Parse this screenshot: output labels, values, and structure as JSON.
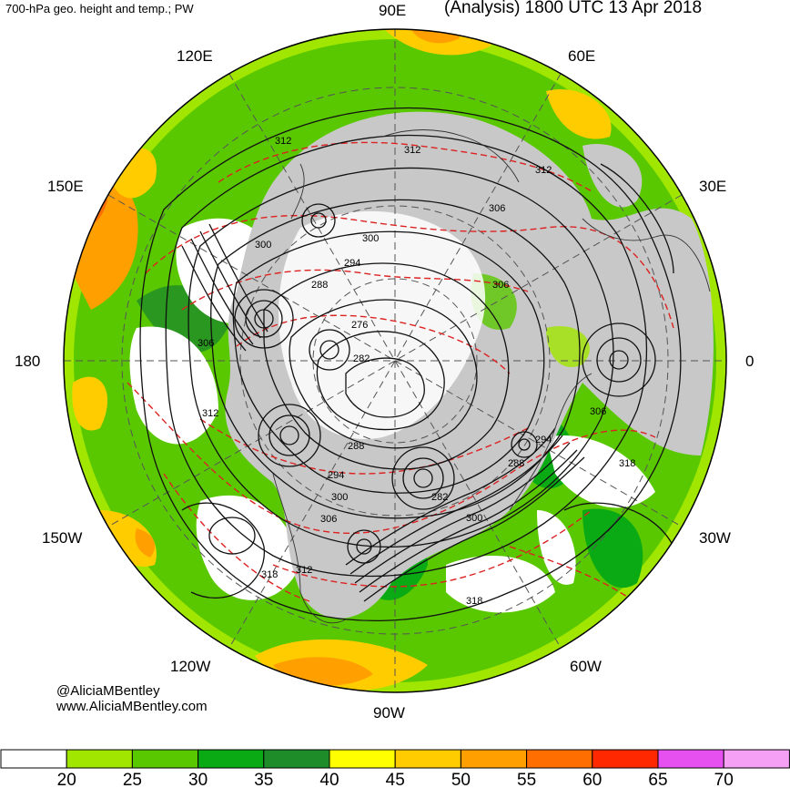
{
  "header": {
    "left_title": "700-hPa geo. height and temp.; PW",
    "right_title": "(Analysis) 1800 UTC 13 Apr 2018"
  },
  "longitude_labels": {
    "n90E": "90E",
    "n60E": "60E",
    "n120E": "120E",
    "n150E": "150E",
    "n30E": "30E",
    "w180": "180",
    "e0": "0",
    "s150W": "150W",
    "s30W": "30W",
    "s120W": "120W",
    "s60W": "60W",
    "s90W": "90W"
  },
  "credit": {
    "handle": "@AliciaMBentley",
    "site": "www.AliciaMBentley.com"
  },
  "contour_labels": [
    "312",
    "312",
    "312",
    "306",
    "300",
    "300",
    "294",
    "288",
    "276",
    "282",
    "306",
    "306",
    "312",
    "288",
    "294",
    "300",
    "306",
    "312",
    "318",
    "282",
    "288",
    "294",
    "300",
    "306",
    "318",
    "318"
  ],
  "colorbar": {
    "colors": [
      "#ffffff",
      "#a0e600",
      "#5ac800",
      "#0aaa14",
      "#1e8c28",
      "#ffff00",
      "#ffcc00",
      "#ffa000",
      "#ff6e00",
      "#ff2800",
      "#e650f0",
      "#f5a0f5"
    ],
    "labels": [
      "20",
      "25",
      "30",
      "35",
      "40",
      "45",
      "50",
      "55",
      "60",
      "65",
      "70"
    ]
  }
}
